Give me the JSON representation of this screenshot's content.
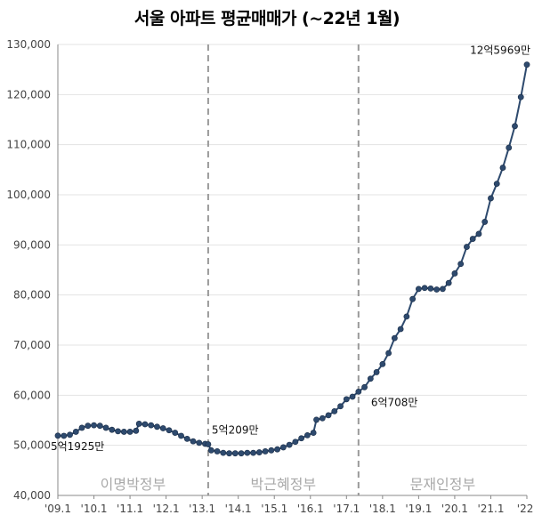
{
  "chart_data": {
    "type": "line",
    "title": "서울 아파트 평균매매가 (~22년 1월)",
    "xlabel": "",
    "ylabel": "",
    "ylim": [
      40000,
      130000
    ],
    "grid": "horizontal",
    "y_ticks": [
      "40,000",
      "50,000",
      "60,000",
      "70,000",
      "80,000",
      "90,000",
      "100,000",
      "110,000",
      "120,000",
      "130,000"
    ],
    "x_ticks": [
      "'09.1",
      "'10.1",
      "'11.1",
      "'12.1",
      "'13.1",
      "'14.1",
      "'15.1",
      "'16.1",
      "'17.1",
      "'18.1",
      "'19.1",
      "'20.1",
      "'21.1",
      "'22."
    ],
    "periods": [
      {
        "label": "이명박정부"
      },
      {
        "label": "박근혜정부"
      },
      {
        "label": "문재인정부"
      }
    ],
    "annotations": [
      {
        "text": "5억1925만",
        "x": "2009-01",
        "y": 51925
      },
      {
        "text": "5억209만",
        "x": "2013-03",
        "y": 50209
      },
      {
        "text": "6억708만",
        "x": "2017-05",
        "y": 60708
      },
      {
        "text": "12억5969만",
        "x": "2022-01",
        "y": 125969
      }
    ],
    "series": [
      {
        "color": "#2e4a6e",
        "points": [
          [
            "2009-01",
            51925
          ],
          [
            "2009-03",
            51900
          ],
          [
            "2009-05",
            52100
          ],
          [
            "2009-07",
            52700
          ],
          [
            "2009-09",
            53500
          ],
          [
            "2009-11",
            53900
          ],
          [
            "2010-01",
            54000
          ],
          [
            "2010-03",
            53900
          ],
          [
            "2010-05",
            53500
          ],
          [
            "2010-07",
            53100
          ],
          [
            "2010-09",
            52800
          ],
          [
            "2010-11",
            52700
          ],
          [
            "2011-01",
            52700
          ],
          [
            "2011-03",
            52900
          ],
          [
            "2011-04",
            54300
          ],
          [
            "2011-06",
            54200
          ],
          [
            "2011-08",
            54000
          ],
          [
            "2011-10",
            53700
          ],
          [
            "2011-12",
            53400
          ],
          [
            "2012-02",
            53000
          ],
          [
            "2012-04",
            52500
          ],
          [
            "2012-06",
            51900
          ],
          [
            "2012-08",
            51300
          ],
          [
            "2012-10",
            50800
          ],
          [
            "2012-12",
            50500
          ],
          [
            "2013-02",
            50300
          ],
          [
            "2013-03",
            50209
          ],
          [
            "2013-04",
            49000
          ],
          [
            "2013-06",
            48800
          ],
          [
            "2013-08",
            48500
          ],
          [
            "2013-10",
            48400
          ],
          [
            "2013-12",
            48400
          ],
          [
            "2014-02",
            48400
          ],
          [
            "2014-04",
            48500
          ],
          [
            "2014-06",
            48500
          ],
          [
            "2014-08",
            48600
          ],
          [
            "2014-10",
            48800
          ],
          [
            "2014-12",
            49000
          ],
          [
            "2015-02",
            49200
          ],
          [
            "2015-04",
            49600
          ],
          [
            "2015-06",
            50100
          ],
          [
            "2015-08",
            50700
          ],
          [
            "2015-10",
            51400
          ],
          [
            "2015-12",
            52000
          ],
          [
            "2016-02",
            52500
          ],
          [
            "2016-03",
            55100
          ],
          [
            "2016-05",
            55400
          ],
          [
            "2016-07",
            56000
          ],
          [
            "2016-09",
            56800
          ],
          [
            "2016-11",
            57800
          ],
          [
            "2017-01",
            59200
          ],
          [
            "2017-03",
            59700
          ],
          [
            "2017-05",
            60708
          ],
          [
            "2017-07",
            61600
          ],
          [
            "2017-09",
            63300
          ],
          [
            "2017-11",
            64600
          ],
          [
            "2018-01",
            66200
          ],
          [
            "2018-03",
            68400
          ],
          [
            "2018-05",
            71400
          ],
          [
            "2018-07",
            73200
          ],
          [
            "2018-09",
            75700
          ],
          [
            "2018-11",
            79200
          ],
          [
            "2019-01",
            81200
          ],
          [
            "2019-03",
            81400
          ],
          [
            "2019-05",
            81300
          ],
          [
            "2019-07",
            81100
          ],
          [
            "2019-09",
            81200
          ],
          [
            "2019-11",
            82400
          ],
          [
            "2020-01",
            84300
          ],
          [
            "2020-03",
            86200
          ],
          [
            "2020-05",
            89600
          ],
          [
            "2020-07",
            91200
          ],
          [
            "2020-09",
            92200
          ],
          [
            "2020-11",
            94600
          ],
          [
            "2021-01",
            99300
          ],
          [
            "2021-03",
            102200
          ],
          [
            "2021-05",
            105400
          ],
          [
            "2021-07",
            109400
          ],
          [
            "2021-09",
            113700
          ],
          [
            "2021-11",
            119500
          ],
          [
            "2022-01",
            125969
          ]
        ]
      }
    ]
  }
}
